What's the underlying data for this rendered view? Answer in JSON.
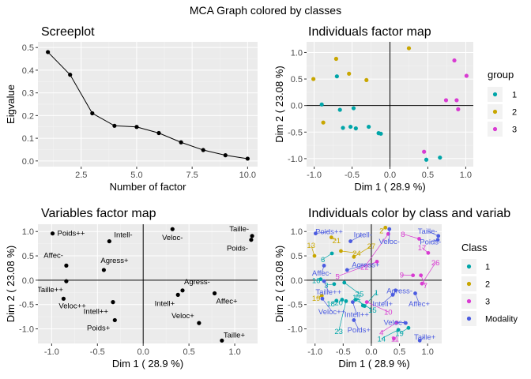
{
  "main_title": "MCA Graph colored by classes",
  "colors": {
    "group_1": "#00a5a8",
    "group_2": "#c8a600",
    "group_3": "#d93bd2",
    "modality": "#4b5be0"
  },
  "legend_group": {
    "title": "group",
    "items": [
      "1",
      "2",
      "3"
    ]
  },
  "legend_class": {
    "title": "Class",
    "items": [
      "1",
      "2",
      "3",
      "Modality"
    ]
  },
  "chart_data": [
    {
      "id": "scree",
      "type": "line",
      "title": "Screeplot",
      "xlabel": "Number of factor",
      "ylabel": "Eigvalue",
      "xlim": [
        0.55,
        10.45
      ],
      "ylim": [
        -0.025,
        0.525
      ],
      "xticks": [
        2.5,
        5.0,
        7.5,
        10.0
      ],
      "xtick_labels": [
        "2.5",
        "5.0",
        "7.5",
        "10.0"
      ],
      "yticks": [
        0.0,
        0.1,
        0.2,
        0.3,
        0.4,
        0.5
      ],
      "ytick_labels": [
        "0.0",
        "0.1",
        "0.2",
        "0.3",
        "0.4",
        "0.5"
      ],
      "x": [
        1,
        2,
        3,
        4,
        5,
        6,
        7,
        8,
        9,
        10
      ],
      "y": [
        0.48,
        0.38,
        0.21,
        0.155,
        0.15,
        0.123,
        0.082,
        0.048,
        0.025,
        0.01
      ]
    },
    {
      "id": "ind",
      "type": "scatter",
      "title": "Individuals factor map",
      "xlabel": "Dim 1  ( 28.9 %)",
      "ylabel": "Dim 2  ( 23.08 %)",
      "xlim": [
        -1.1,
        1.1
      ],
      "ylim": [
        -1.15,
        1.2
      ],
      "xticks": [
        -1.0,
        -0.5,
        0.0,
        0.5,
        1.0
      ],
      "xtick_labels": [
        "-1.0",
        "-0.5",
        "0.0",
        "0.5",
        "1.0"
      ],
      "yticks": [
        -1.0,
        -0.5,
        0.0,
        0.5,
        1.0
      ],
      "ytick_labels": [
        "-1.0",
        "-0.5",
        "0.0",
        "0.5",
        "1.0"
      ],
      "points": [
        {
          "x": -0.71,
          "y": 0.88,
          "g": 2
        },
        {
          "x": 0.25,
          "y": 1.08,
          "g": 2
        },
        {
          "x": -1.01,
          "y": 0.5,
          "g": 2
        },
        {
          "x": -0.54,
          "y": 0.6,
          "g": 2
        },
        {
          "x": -0.31,
          "y": 0.48,
          "g": 2
        },
        {
          "x": -0.88,
          "y": -0.32,
          "g": 2
        },
        {
          "x": -0.7,
          "y": 0.55,
          "g": 1
        },
        {
          "x": -0.9,
          "y": 0.02,
          "g": 1
        },
        {
          "x": -0.66,
          "y": -0.08,
          "g": 1
        },
        {
          "x": -0.62,
          "y": -0.42,
          "g": 1
        },
        {
          "x": -0.52,
          "y": -0.4,
          "g": 1
        },
        {
          "x": -0.48,
          "y": -0.05,
          "g": 1
        },
        {
          "x": -0.45,
          "y": -0.43,
          "g": 1
        },
        {
          "x": -0.28,
          "y": -0.4,
          "g": 1
        },
        {
          "x": -0.15,
          "y": -0.52,
          "g": 1
        },
        {
          "x": -0.12,
          "y": -0.53,
          "g": 1
        },
        {
          "x": 0.48,
          "y": -1.02,
          "g": 1
        },
        {
          "x": 0.66,
          "y": -0.98,
          "g": 1
        },
        {
          "x": 0.85,
          "y": 0.85,
          "g": 3
        },
        {
          "x": 1.01,
          "y": 0.56,
          "g": 3
        },
        {
          "x": 0.74,
          "y": 0.1,
          "g": 3
        },
        {
          "x": 0.88,
          "y": 0.1,
          "g": 3
        },
        {
          "x": 0.9,
          "y": -0.07,
          "g": 3
        },
        {
          "x": 0.45,
          "y": -0.87,
          "g": 3
        }
      ]
    },
    {
      "id": "var",
      "type": "scatter",
      "title": "Variables factor map",
      "xlabel": "Dim 1  ( 28.9 %)",
      "ylabel": "Dim 2  ( 23.08 %)",
      "xlim": [
        -1.15,
        1.25
      ],
      "ylim": [
        -1.3,
        1.15
      ],
      "xticks": [
        -1.0,
        -0.5,
        0.0,
        0.5,
        1.0
      ],
      "xtick_labels": [
        "-1.0",
        "-0.5",
        "0.0",
        "0.5",
        "1.0"
      ],
      "yticks": [
        -1.0,
        -0.5,
        0.0,
        0.5,
        1.0
      ],
      "ytick_labels": [
        "-1.0",
        "-0.5",
        "0.0",
        "0.5",
        "1.0"
      ],
      "points": [
        {
          "x": -0.99,
          "y": 0.96,
          "label": "Poids++",
          "dx": 6,
          "dy": 3,
          "anchor": "start"
        },
        {
          "x": -0.37,
          "y": 0.8,
          "label": "Intell-",
          "dx": 6,
          "dy": -5,
          "anchor": "start"
        },
        {
          "x": 0.32,
          "y": 1.05,
          "label": "Veloc-",
          "dx": 0,
          "dy": 14,
          "anchor": "middle"
        },
        {
          "x": 1.19,
          "y": 0.91,
          "label": "Taille-",
          "dx": -4,
          "dy": -6,
          "anchor": "end"
        },
        {
          "x": 1.18,
          "y": 0.83,
          "label": "Poids-",
          "dx": -4,
          "dy": 14,
          "anchor": "end"
        },
        {
          "x": -0.84,
          "y": 0.3,
          "label": "Affec-",
          "dx": -4,
          "dy": -10,
          "anchor": "end"
        },
        {
          "x": -0.43,
          "y": 0.21,
          "label": "Agress+",
          "dx": -4,
          "dy": -9,
          "anchor": "start"
        },
        {
          "x": -0.84,
          "y": -0.02,
          "label": "Taille++",
          "dx": -4,
          "dy": 14,
          "anchor": "end"
        },
        {
          "x": -0.87,
          "y": -0.38,
          "label": "Veloc++",
          "dx": -6,
          "dy": 12,
          "anchor": "start"
        },
        {
          "x": 0.43,
          "y": -0.21,
          "label": "Agress-",
          "dx": 2,
          "dy": -8,
          "anchor": "start"
        },
        {
          "x": 0.38,
          "y": -0.3,
          "label": "Intell+",
          "dx": -4,
          "dy": 14,
          "anchor": "end"
        },
        {
          "x": 0.78,
          "y": -0.27,
          "label": "Affec+",
          "dx": 2,
          "dy": 13,
          "anchor": "start"
        },
        {
          "x": -0.33,
          "y": -0.45,
          "label": "Intell++",
          "dx": -6,
          "dy": 15,
          "anchor": "end"
        },
        {
          "x": -0.31,
          "y": -0.82,
          "label": "Poids+",
          "dx": -6,
          "dy": 13,
          "anchor": "end"
        },
        {
          "x": 0.61,
          "y": -0.88,
          "label": "Veloc+",
          "dx": -6,
          "dy": -6,
          "anchor": "end"
        },
        {
          "x": 0.86,
          "y": -1.24,
          "label": "Taille+",
          "dx": 2,
          "dy": -4,
          "anchor": "start"
        }
      ]
    },
    {
      "id": "biplot",
      "type": "scatter",
      "title": "Individuals color by class and variab",
      "xlabel": "Dim 1  ( 28.9 %)",
      "ylabel": "Dim 2  ( 23.08 %)",
      "xlim": [
        -1.15,
        1.25
      ],
      "ylim": [
        -1.3,
        1.15
      ],
      "xticks": [
        -1.0,
        -0.5,
        0.0,
        0.5,
        1.0
      ],
      "xtick_labels": [
        "-1.0",
        "-0.5",
        "0.0",
        "0.5",
        "1.0"
      ],
      "yticks": [
        -1.0,
        -0.5,
        0.0,
        0.5,
        1.0
      ],
      "ytick_labels": [
        "-1.0",
        "-0.5",
        "0.0",
        "0.5",
        "1.0"
      ],
      "individuals": [
        {
          "x": -0.71,
          "y": 0.88,
          "c": 2,
          "label": "21",
          "lx": -0.62,
          "ly": 0.82
        },
        {
          "x": 0.25,
          "y": 1.08,
          "c": 2,
          "label": "2",
          "lx": 0.18,
          "ly": 1.02
        },
        {
          "x": -1.01,
          "y": 0.5,
          "c": 2,
          "label": "13",
          "lx": -1.07,
          "ly": 0.72
        },
        {
          "x": -0.54,
          "y": 0.6,
          "c": 2,
          "label": "24",
          "lx": -0.26,
          "ly": 0.56
        },
        {
          "x": -0.31,
          "y": 0.48,
          "c": 2,
          "label": "27",
          "lx": 0.0,
          "ly": 0.7
        },
        {
          "x": -0.88,
          "y": -0.32,
          "c": 2,
          "label": "19",
          "lx": -0.98,
          "ly": -0.37
        },
        {
          "x": -0.7,
          "y": 0.55,
          "c": 1,
          "label": "6",
          "lx": -0.86,
          "ly": 0.43
        },
        {
          "x": -0.9,
          "y": 0.02,
          "c": 1,
          "label": "16",
          "lx": -0.98,
          "ly": 0.0
        },
        {
          "x": -0.66,
          "y": -0.08,
          "c": 1,
          "label": "3",
          "lx": -0.8,
          "ly": -0.1
        },
        {
          "x": -0.62,
          "y": -0.42,
          "c": 1,
          "label": "18",
          "lx": -0.72,
          "ly": -0.48
        },
        {
          "x": -0.52,
          "y": -0.4,
          "c": 1,
          "label": "20",
          "lx": -0.58,
          "ly": -0.46
        },
        {
          "x": -0.48,
          "y": -0.05,
          "c": 1,
          "label": "25",
          "lx": -0.21,
          "ly": -0.28
        },
        {
          "x": -0.45,
          "y": -0.43,
          "c": 1,
          "label": "23",
          "lx": -0.58,
          "ly": -1.05
        },
        {
          "x": -0.28,
          "y": -0.4,
          "c": 1,
          "label": "15",
          "lx": 0.02,
          "ly": -0.61
        },
        {
          "x": -0.15,
          "y": -0.52,
          "c": 1,
          "label": "12",
          "lx": -0.26,
          "ly": -0.35
        },
        {
          "x": -0.12,
          "y": -0.53,
          "c": 1,
          "label": "1",
          "lx": 0.09,
          "ly": -0.25
        },
        {
          "x": 0.48,
          "y": -1.02,
          "c": 1,
          "label": "14",
          "lx": 0.18,
          "ly": -1.2
        },
        {
          "x": 0.66,
          "y": -0.98,
          "c": 1,
          "label": "19",
          "lx": 0.5,
          "ly": -1.09
        },
        {
          "x": 0.85,
          "y": 0.85,
          "c": 3,
          "label": "8",
          "lx": 0.56,
          "ly": 0.95
        },
        {
          "x": 1.01,
          "y": 0.56,
          "c": 3,
          "label": "17",
          "lx": 0.9,
          "ly": 0.67
        },
        {
          "x": 0.74,
          "y": 0.1,
          "c": 3,
          "label": "9",
          "lx": 0.54,
          "ly": 0.11
        },
        {
          "x": 0.88,
          "y": 0.1,
          "c": 3,
          "label": "7",
          "lx": 0.96,
          "ly": -0.11
        },
        {
          "x": 0.9,
          "y": -0.07,
          "c": 3,
          "label": "26",
          "lx": 1.14,
          "ly": 0.36
        },
        {
          "x": 0.45,
          "y": -0.87,
          "c": 3,
          "label": "4",
          "lx": 0.18,
          "ly": -1.07
        },
        {
          "x": 0.3,
          "y": 0.95,
          "c": 3,
          "label": "22",
          "lx": -0.12,
          "ly": 0.27
        },
        {
          "x": 0.4,
          "y": -1.2,
          "c": 3,
          "label": "11",
          "lx": 0.42,
          "ly": -1.2
        },
        {
          "x": 0.1,
          "y": 0.38,
          "c": 3,
          "label": "5",
          "lx": -0.6,
          "ly": 0.08
        },
        {
          "x": -0.08,
          "y": -0.45,
          "c": 3,
          "label": "10",
          "lx": 0.3,
          "ly": -0.65
        }
      ],
      "modalities": [
        {
          "x": -0.99,
          "y": 0.96,
          "label": "Poids++",
          "lx": -0.75,
          "ly": 1.0
        },
        {
          "x": -0.37,
          "y": 0.8,
          "label": "Intell-",
          "lx": -0.15,
          "ly": 0.94
        },
        {
          "x": 0.32,
          "y": 1.05,
          "label": "Veloc-",
          "lx": 0.32,
          "ly": 0.8
        },
        {
          "x": 1.19,
          "y": 0.91,
          "label": "Taille-",
          "lx": 1.0,
          "ly": 1.01
        },
        {
          "x": 1.18,
          "y": 0.83,
          "label": "Poids-",
          "lx": 1.05,
          "ly": 0.79
        },
        {
          "x": -0.84,
          "y": 0.3,
          "label": "Affec-",
          "lx": -0.88,
          "ly": 0.15
        },
        {
          "x": -0.43,
          "y": 0.21,
          "label": "Agress+",
          "lx": -0.1,
          "ly": 0.32
        },
        {
          "x": -0.84,
          "y": -0.02,
          "label": "Taille++",
          "lx": -0.76,
          "ly": -0.24
        },
        {
          "x": -0.87,
          "y": -0.38,
          "label": "Veloc++",
          "lx": -0.7,
          "ly": -0.64
        },
        {
          "x": 0.43,
          "y": -0.21,
          "label": "Agress-",
          "lx": 0.5,
          "ly": -0.21
        },
        {
          "x": 0.38,
          "y": -0.3,
          "label": "Intell+",
          "lx": 0.2,
          "ly": -0.48
        },
        {
          "x": 0.78,
          "y": -0.27,
          "label": "Affec+",
          "lx": 0.85,
          "ly": -0.48
        },
        {
          "x": -0.33,
          "y": -0.45,
          "label": "Intell++",
          "lx": -0.26,
          "ly": -0.7
        },
        {
          "x": -0.31,
          "y": -0.82,
          "label": "Poids+",
          "lx": -0.22,
          "ly": -1.02
        },
        {
          "x": 0.61,
          "y": -0.88,
          "label": "Veloc+",
          "lx": 0.42,
          "ly": -0.86
        },
        {
          "x": 0.86,
          "y": -1.24,
          "label": "Taille+",
          "lx": 0.95,
          "ly": -1.16
        }
      ]
    }
  ]
}
